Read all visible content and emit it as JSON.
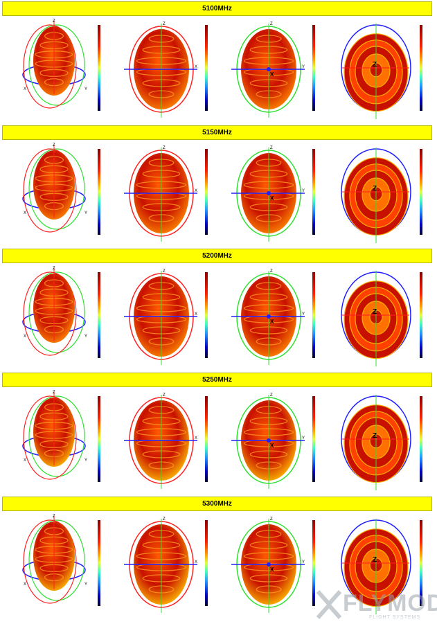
{
  "sections": [
    {
      "title": "5100MHz"
    },
    {
      "title": "5150MHz"
    },
    {
      "title": "5200MHz"
    },
    {
      "title": "5250MHz"
    },
    {
      "title": "5300MHz"
    }
  ],
  "axis_labels": {
    "z": "Z",
    "x": "X",
    "y": "Y"
  },
  "colors": {
    "header": "#ffff00",
    "pattern_hot": "#c81000",
    "pattern_mid": "#ff5a00",
    "pattern_low": "#ffc000",
    "axis_red": "#ff2020",
    "axis_green": "#30e030",
    "axis_blue": "#2020ff"
  },
  "watermark": {
    "logo": "FLYMOD",
    "subtitle": "FLIGHT SYSTEMS"
  }
}
